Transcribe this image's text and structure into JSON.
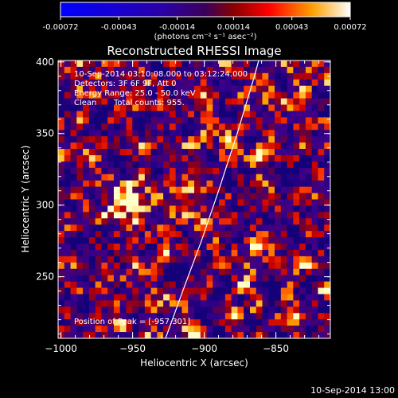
{
  "chart_data": {
    "type": "heatmap",
    "title": "Reconstructed RHESSI Image",
    "xlabel": "Heliocentric X (arcsec)",
    "ylabel": "Heliocentric Y (arcsec)",
    "xlim": [
      -1002,
      -812
    ],
    "ylim": [
      207,
      401
    ],
    "xticks": [
      -1000,
      -950,
      -900,
      -850
    ],
    "yticks": [
      250,
      300,
      350,
      400
    ],
    "colorbar": {
      "ticks": [
        "-0.00072",
        "-0.00043",
        "-0.00014",
        "0.00014",
        "0.00043",
        "0.00072"
      ],
      "unit_label": "(photons cm⁻² s⁻¹ asec⁻²)",
      "range": [
        -0.00072,
        0.00072
      ]
    },
    "annotations": {
      "time_range": "10-Sep-2014 03:10:08.000 to 03:12:24.000",
      "detectors": "Detectors: 3F 6F 9F, Att 0",
      "energy": "Energy Range: 25.0 - 50.0 keV",
      "method": "Clean",
      "counts": "Total counts: 955.",
      "peak": "Position of Peak = [-957,301]"
    },
    "peak": {
      "x": -957,
      "y": 301
    },
    "limb_curve": [
      [
        -927,
        207
      ],
      [
        -915,
        240
      ],
      [
        -902,
        275
      ],
      [
        -890,
        310
      ],
      [
        -877,
        350
      ],
      [
        -865,
        390
      ],
      [
        -862,
        401
      ]
    ]
  },
  "footer": {
    "timestamp": "10-Sep-2014 13:00"
  },
  "colors": {
    "background": "#000000",
    "text": "#ffffff"
  }
}
